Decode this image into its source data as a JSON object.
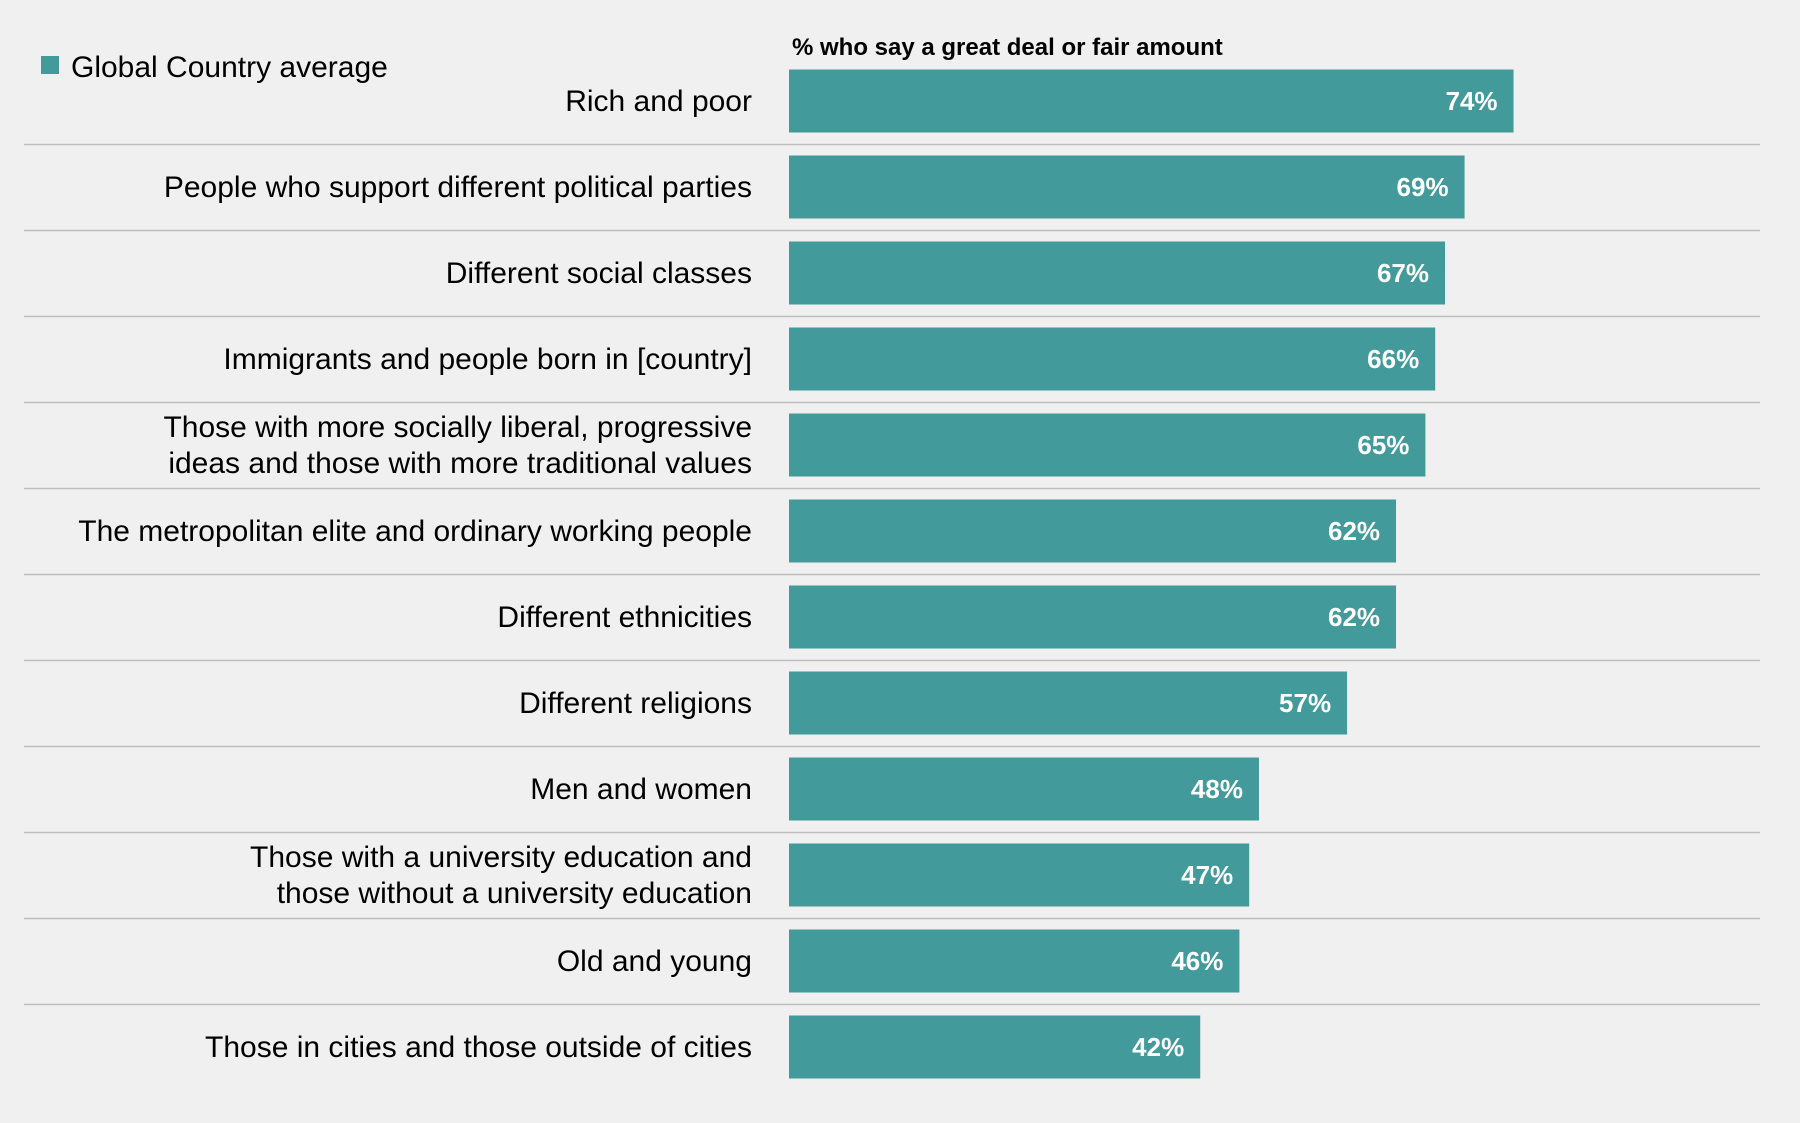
{
  "chart_data": {
    "type": "bar",
    "orientation": "horizontal",
    "subtitle": "% who say a great deal or fair amount",
    "categories": [
      "Rich and poor",
      "People who support different political parties",
      "Different social classes",
      "Immigrants and people born in [country]",
      "Those with more socially liberal, progressive ideas and those with more traditional values",
      "The metropolitan elite and ordinary working people",
      "Different ethnicities",
      "Different religions",
      "Men and women",
      "Those with a university education and those without a university education",
      "Old and young",
      "Those in cities and those outside of cities"
    ],
    "label_lines": [
      [
        "Rich and poor"
      ],
      [
        "People who support different political parties"
      ],
      [
        "Different social classes"
      ],
      [
        "Immigrants and people born in [country]"
      ],
      [
        "Those with more socially liberal, progressive",
        "ideas and those with more traditional values"
      ],
      [
        "The metropolitan elite and ordinary working people"
      ],
      [
        "Different ethnicities"
      ],
      [
        "Different religions"
      ],
      [
        "Men and women"
      ],
      [
        "Those with a university education and",
        "those without a university education"
      ],
      [
        "Old and young"
      ],
      [
        "Those in cities and those outside of cities"
      ]
    ],
    "series": [
      {
        "name": "Global Country average",
        "color": "#429a9a",
        "values": [
          74,
          69,
          67,
          66,
          65,
          62,
          62,
          57,
          48,
          47,
          46,
          42
        ],
        "value_labels": [
          "74%",
          "69%",
          "67%",
          "66%",
          "65%",
          "62%",
          "62%",
          "57%",
          "48%",
          "47%",
          "46%",
          "42%"
        ]
      }
    ],
    "xlim": [
      0,
      100
    ],
    "grid": false,
    "legend_position": "top-left",
    "separator_color": "#bdbdbd"
  }
}
